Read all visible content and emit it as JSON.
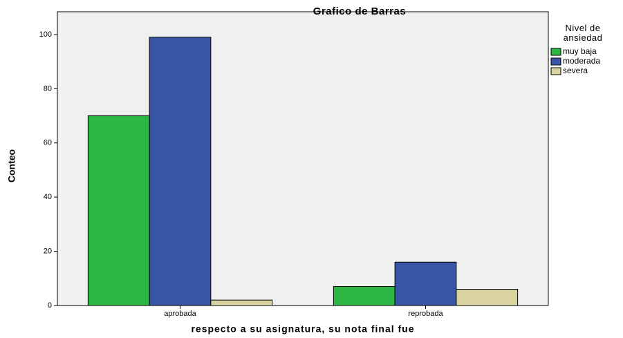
{
  "chart_data": {
    "type": "bar",
    "title": "Grafico de Barras",
    "x_label": "respecto a su asignatura, su nota final fue",
    "y_label": "Conteo",
    "legend_title": "Nivel de ansiedad",
    "categories": [
      "aprobada",
      "reprobada"
    ],
    "series": [
      {
        "name": "muy baja",
        "color": "#2cb742",
        "values": [
          70,
          7
        ]
      },
      {
        "name": "moderada",
        "color": "#3a54a6",
        "values": [
          99,
          16
        ]
      },
      {
        "name": "severa",
        "color": "#d9d3a0",
        "values": [
          2,
          6
        ]
      }
    ],
    "ylim": [
      0,
      108.4
    ],
    "yticks": [
      0,
      20,
      40,
      60,
      80,
      100
    ],
    "legend": "right"
  }
}
